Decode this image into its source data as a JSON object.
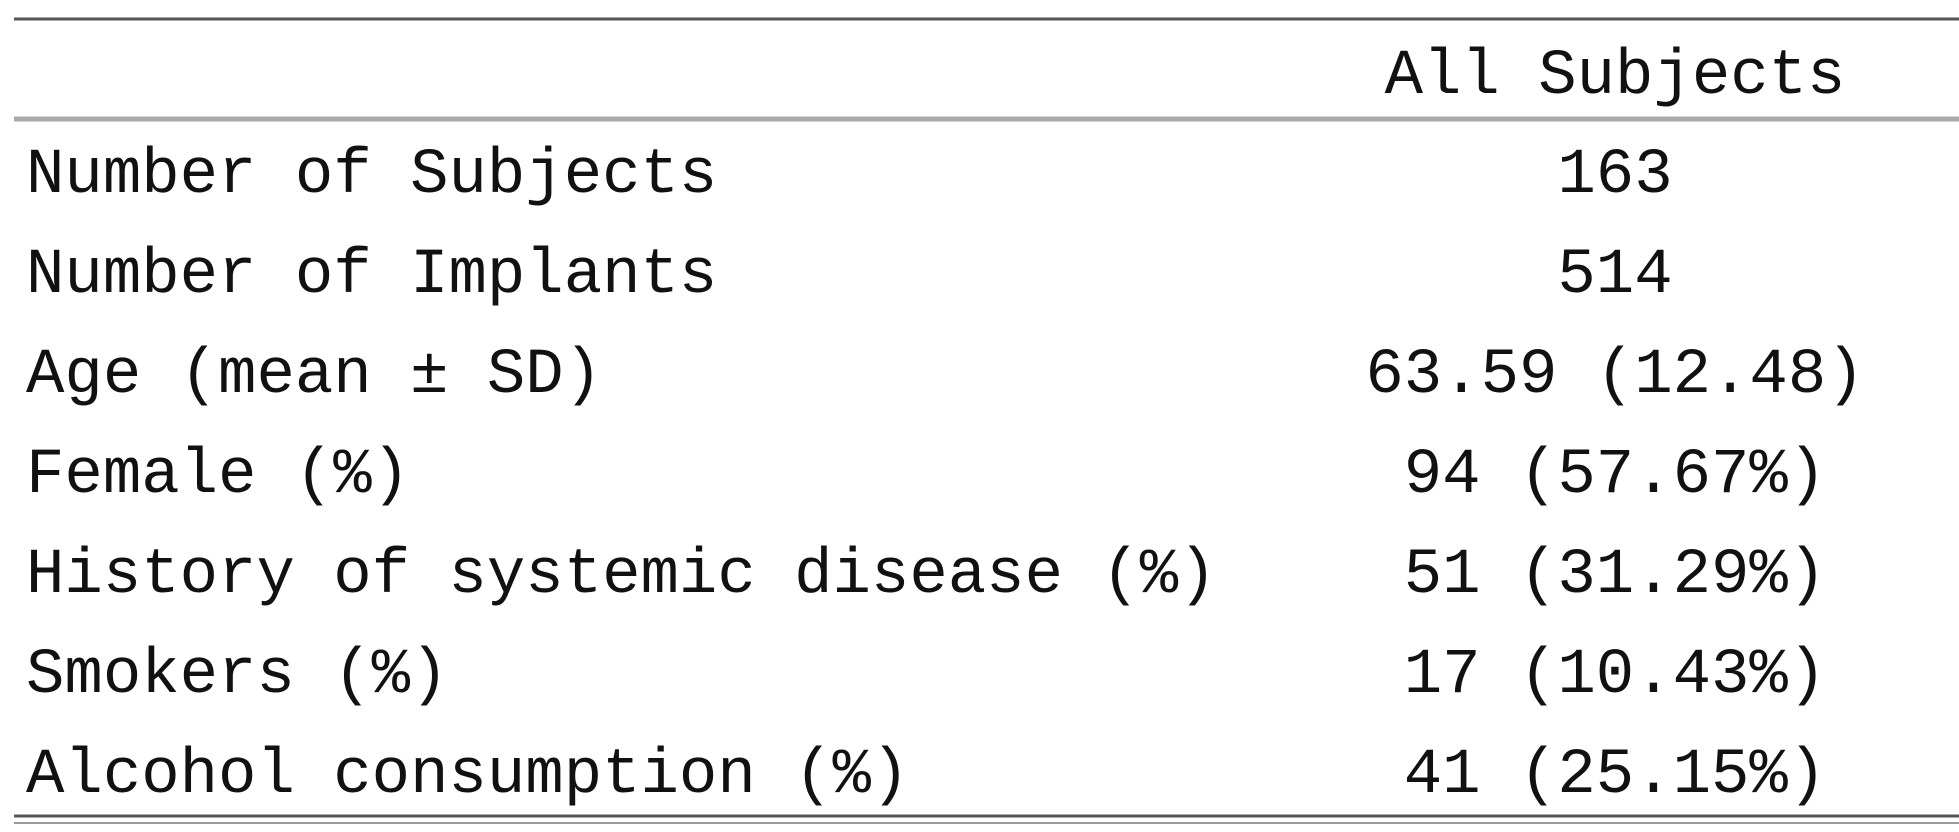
{
  "table": {
    "column_header": "All Subjects",
    "rows": [
      [
        "Number of Subjects",
        "163"
      ],
      [
        "Number of Implants",
        "514"
      ],
      [
        "Age (mean ± SD)",
        "63.59 (12.48)"
      ],
      [
        "Female (%)",
        "94 (57.67%)"
      ],
      [
        "History of systemic disease (%)",
        "51 (31.29%)"
      ],
      [
        "Smokers (%)",
        "17 (10.43%)"
      ],
      [
        "Alcohol consumption (%)",
        "41 (25.15%)"
      ]
    ]
  }
}
